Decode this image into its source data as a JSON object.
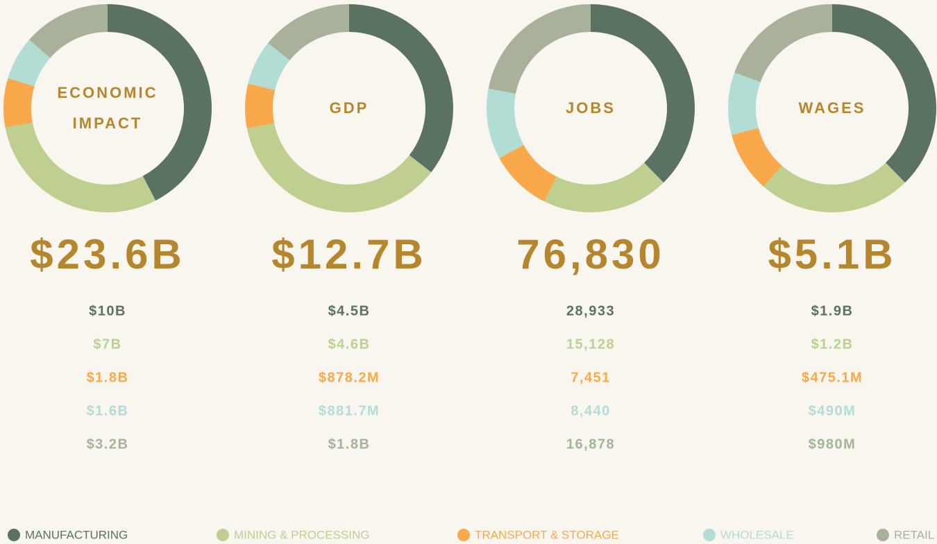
{
  "chart_data": [
    {
      "type": "donut",
      "title": "ECONOMIC IMPACT",
      "total": 23.6,
      "total_label": "$23.6B",
      "categories": [
        "MANUFACTURING",
        "MINING & PROCESSING",
        "TRANSPORT & STORAGE",
        "WHOLESALE",
        "RETAIL"
      ],
      "colors": [
        "#5a7262",
        "#bfcf8f",
        "#f9a94b",
        "#b1ddd5",
        "#a9b19b"
      ],
      "values": [
        10,
        7,
        1.8,
        1.6,
        3.2
      ],
      "value_labels": [
        "$10B",
        "$7B",
        "$1.8B",
        "$1.6B",
        "$3.2B"
      ]
    },
    {
      "type": "donut",
      "title": "GDP",
      "total": 12.7,
      "total_label": "$12.7B",
      "categories": [
        "MANUFACTURING",
        "MINING & PROCESSING",
        "TRANSPORT & STORAGE",
        "WHOLESALE",
        "RETAIL"
      ],
      "colors": [
        "#5a7262",
        "#bfcf8f",
        "#f9a94b",
        "#b1ddd5",
        "#a9b19b"
      ],
      "values": [
        4.5,
        4.6,
        0.8782,
        0.8817,
        1.8
      ],
      "value_labels": [
        "$4.5B",
        "$4.6B",
        "$878.2M",
        "$881.7M",
        "$1.8B"
      ]
    },
    {
      "type": "donut",
      "title": "JOBS",
      "total": 76830,
      "total_label": "76,830",
      "categories": [
        "MANUFACTURING",
        "MINING & PROCESSING",
        "TRANSPORT & STORAGE",
        "WHOLESALE",
        "RETAIL"
      ],
      "colors": [
        "#5a7262",
        "#bfcf8f",
        "#f9a94b",
        "#b1ddd5",
        "#a9b19b"
      ],
      "values": [
        28933,
        15128,
        7451,
        8440,
        16878
      ],
      "value_labels": [
        "28,933",
        "15,128",
        "7,451",
        "8,440",
        "16,878"
      ]
    },
    {
      "type": "donut",
      "title": "WAGES",
      "total": 5.1,
      "total_label": "$5.1B",
      "categories": [
        "MANUFACTURING",
        "MINING & PROCESSING",
        "TRANSPORT & STORAGE",
        "WHOLESALE",
        "RETAIL"
      ],
      "colors": [
        "#5a7262",
        "#bfcf8f",
        "#f9a94b",
        "#b1ddd5",
        "#a9b19b"
      ],
      "values": [
        1.9,
        1.2,
        0.4751,
        0.49,
        0.98
      ],
      "value_labels": [
        "$1.9B",
        "$1.2B",
        "$475.1M",
        "$490M",
        "$980M"
      ]
    }
  ]
}
